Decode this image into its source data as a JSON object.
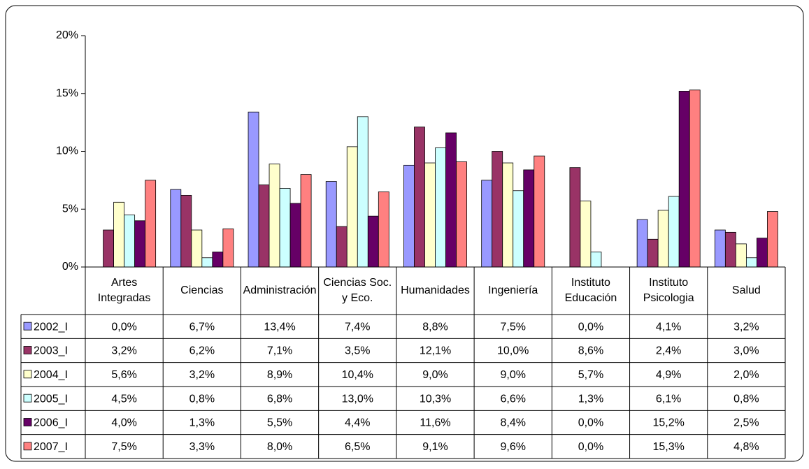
{
  "chart_data": {
    "type": "bar",
    "categories": [
      "Artes Integradas",
      "Ciencias",
      "Administración",
      "Ciencias Soc. y Eco.",
      "Humanidades",
      "Ingeniería",
      "Instituto Educación",
      "Instituto Psicologia",
      "Salud"
    ],
    "series": [
      {
        "name": "2002_I",
        "color": "#9999ff",
        "values": [
          0.0,
          6.7,
          13.4,
          7.4,
          8.8,
          7.5,
          0.0,
          4.1,
          3.2
        ],
        "value_labels": [
          "0,0%",
          "6,7%",
          "13,4%",
          "7,4%",
          "8,8%",
          "7,5%",
          "0,0%",
          "4,1%",
          "3,2%"
        ]
      },
      {
        "name": "2003_I",
        "color": "#993366",
        "values": [
          3.2,
          6.2,
          7.1,
          3.5,
          12.1,
          10.0,
          8.6,
          2.4,
          3.0
        ],
        "value_labels": [
          "3,2%",
          "6,2%",
          "7,1%",
          "3,5%",
          "12,1%",
          "10,0%",
          "8,6%",
          "2,4%",
          "3,0%"
        ]
      },
      {
        "name": "2004_I",
        "color": "#ffffcc",
        "values": [
          5.6,
          3.2,
          8.9,
          10.4,
          9.0,
          9.0,
          5.7,
          4.9,
          2.0
        ],
        "value_labels": [
          "5,6%",
          "3,2%",
          "8,9%",
          "10,4%",
          "9,0%",
          "9,0%",
          "5,7%",
          "4,9%",
          "2,0%"
        ]
      },
      {
        "name": "2005_I",
        "color": "#ccffff",
        "values": [
          4.5,
          0.8,
          6.8,
          13.0,
          10.3,
          6.6,
          1.3,
          6.1,
          0.8
        ],
        "value_labels": [
          "4,5%",
          "0,8%",
          "6,8%",
          "13,0%",
          "10,3%",
          "6,6%",
          "1,3%",
          "6,1%",
          "0,8%"
        ]
      },
      {
        "name": "2006_I",
        "color": "#660066",
        "values": [
          4.0,
          1.3,
          5.5,
          4.4,
          11.6,
          8.4,
          0.0,
          15.2,
          2.5
        ],
        "value_labels": [
          "4,0%",
          "1,3%",
          "5,5%",
          "4,4%",
          "11,6%",
          "8,4%",
          "0,0%",
          "15,2%",
          "2,5%"
        ]
      },
      {
        "name": "2007_I",
        "color": "#ff8080",
        "values": [
          7.5,
          3.3,
          8.0,
          6.5,
          9.1,
          9.6,
          0.0,
          15.3,
          4.8
        ],
        "value_labels": [
          "7,5%",
          "3,3%",
          "8,0%",
          "6,5%",
          "9,1%",
          "9,6%",
          "0,0%",
          "15,3%",
          "4,8%"
        ]
      }
    ],
    "ylim": [
      0,
      20
    ],
    "yticks": [
      {
        "value": 0,
        "label": "0%"
      },
      {
        "value": 5,
        "label": "5%"
      },
      {
        "value": 10,
        "label": "10%"
      },
      {
        "value": 15,
        "label": "15%"
      },
      {
        "value": 20,
        "label": "20%"
      }
    ],
    "grid": false
  }
}
